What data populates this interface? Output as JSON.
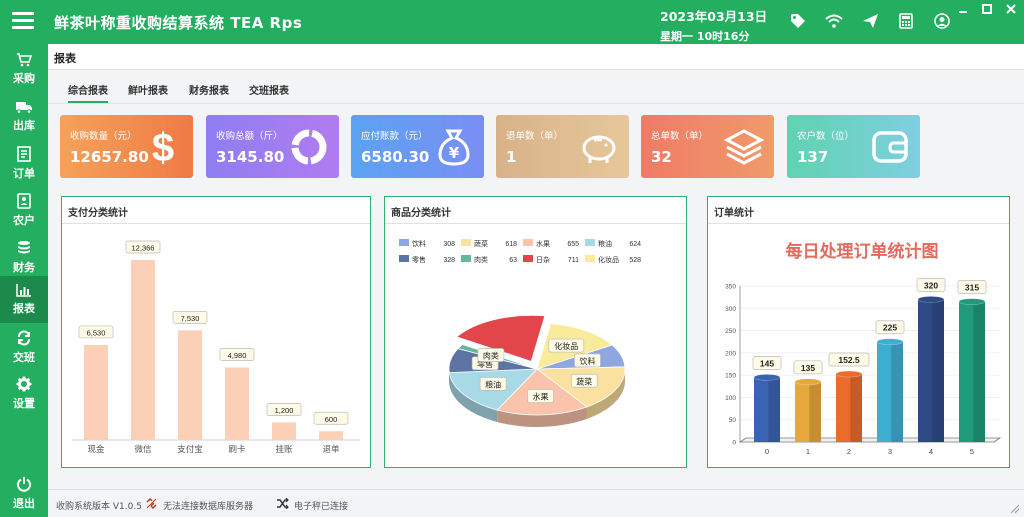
{
  "app": {
    "title": "鲜茶叶称重收购结算系统  TEA  Rps",
    "date": "2023年03月13日",
    "weekday_time": "星期一    10时16分"
  },
  "sidebar": {
    "items": [
      {
        "label": "采购",
        "icon": "cart-icon"
      },
      {
        "label": "出库",
        "icon": "truck-icon"
      },
      {
        "label": "订单",
        "icon": "order-icon"
      },
      {
        "label": "农户",
        "icon": "farmer-icon"
      },
      {
        "label": "财务",
        "icon": "finance-icon"
      },
      {
        "label": "报表",
        "icon": "report-icon",
        "active": true
      },
      {
        "label": "交班",
        "icon": "shift-icon"
      },
      {
        "label": "设置",
        "icon": "gear-icon"
      }
    ],
    "exit_label": "退出"
  },
  "page": {
    "title": "报表",
    "tabs": [
      "综合报表",
      "鲜叶报表",
      "财务报表",
      "交班报表"
    ],
    "active_tab": 0
  },
  "cards": [
    {
      "label": "收购数量（元）",
      "value": "12657.80",
      "icon": "dollar-icon",
      "color_from": "#f5a25a",
      "color_to": "#ef7b45"
    },
    {
      "label": "收购总额（斤）",
      "value": "3145.80",
      "icon": "donut-icon",
      "color_from": "#8e7ef2",
      "color_to": "#b07cf0"
    },
    {
      "label": "应付账款（元）",
      "value": "6580.30",
      "icon": "money-bag-icon",
      "color_from": "#5aa3f2",
      "color_to": "#7b8ef4"
    },
    {
      "label": "退单数（单）",
      "value": "1",
      "icon": "piggy-bank-icon",
      "color_from": "#d8b289",
      "color_to": "#e6c79a"
    },
    {
      "label": "总单数（单）",
      "value": "32",
      "icon": "layers-icon",
      "color_from": "#ef7b66",
      "color_to": "#f19a6a"
    },
    {
      "label": "农户数（位）",
      "value": "137",
      "icon": "wallet-icon",
      "color_from": "#5fd3b0",
      "color_to": "#7fcfe0"
    }
  ],
  "panels": {
    "payment": {
      "title": "支付分类统计"
    },
    "category": {
      "title": "商品分类统计"
    },
    "orders": {
      "title": "订单统计",
      "chart_title": "每日处理订单统计图"
    }
  },
  "chart_data": [
    {
      "type": "bar",
      "categories": [
        "现金",
        "微信",
        "支付宝",
        "刷卡",
        "挂账",
        "退单"
      ],
      "values": [
        6530,
        12366,
        7530,
        4980,
        1200,
        600
      ],
      "value_labels": [
        "6,530",
        "12,366",
        "7,530",
        "4,980",
        "1,200",
        "600"
      ],
      "color": "#fbd0b6"
    },
    {
      "type": "pie",
      "legend": [
        {
          "name": "饮料",
          "value": 308,
          "color": "#8ea7de"
        },
        {
          "name": "蔬菜",
          "value": 618,
          "color": "#fbe19f"
        },
        {
          "name": "水果",
          "value": 655,
          "color": "#fbc3ac"
        },
        {
          "name": "粮油",
          "value": 624,
          "color": "#a8d9e6"
        },
        {
          "name": "零售",
          "value": 328,
          "color": "#5c73a4"
        },
        {
          "name": "肉类",
          "value": 63,
          "color": "#63b79b"
        },
        {
          "name": "日杂",
          "value": 711,
          "color": "#e2454a"
        },
        {
          "name": "化妆品",
          "value": 528,
          "color": "#f9eb9a"
        }
      ],
      "slice_labels": [
        "水果",
        "蔬菜",
        "饮料",
        "化妆品",
        "粮油",
        "零售",
        "肉类"
      ]
    },
    {
      "type": "bar",
      "title": "每日处理订单统计图",
      "categories": [
        "0",
        "1",
        "2",
        "3",
        "4",
        "5"
      ],
      "values": [
        145,
        135,
        152.5,
        225,
        320,
        315
      ],
      "value_labels": [
        "145",
        "135",
        "152.5",
        "225",
        "320",
        "315"
      ],
      "colors": [
        "#3b63b3",
        "#e6a83a",
        "#ea6b2a",
        "#3eaed0",
        "#2e4a86",
        "#1f9a7a"
      ],
      "ylim": [
        0,
        350
      ],
      "yticks": [
        "0",
        "50",
        "100",
        "150",
        "200",
        "250",
        "300",
        "350"
      ]
    }
  ],
  "status": {
    "version": "收购系统版本 V1.0.5",
    "db_status": "无法连接数据库服务器",
    "scale_status": "电子秤已连接"
  }
}
